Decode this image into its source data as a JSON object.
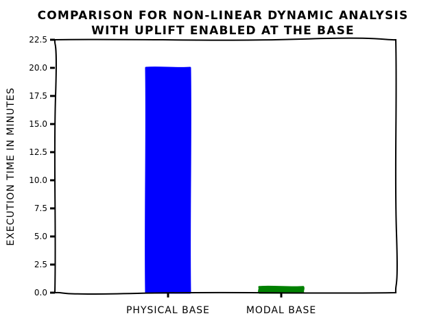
{
  "chart_data": {
    "type": "bar",
    "title": [
      "COMPARISON FOR NON-LINEAR DYNAMIC ANALYSIS",
      "WITH UPLIFT ENABLED AT THE BASE"
    ],
    "xlabel": "",
    "ylabel": "EXECUTION TIME IN MINUTES",
    "categories": [
      "PHYSICAL BASE",
      "MODAL BASE"
    ],
    "values": [
      20.0,
      0.5
    ],
    "colors": [
      "#0000ff",
      "#008000"
    ],
    "ylim": [
      0,
      22.5
    ],
    "yticks": [
      "0.0",
      "2.5",
      "5.0",
      "7.5",
      "10.0",
      "12.5",
      "15.0",
      "17.5",
      "20.0",
      "22.5"
    ],
    "grid": false,
    "legend": "none",
    "style": "xkcd"
  }
}
